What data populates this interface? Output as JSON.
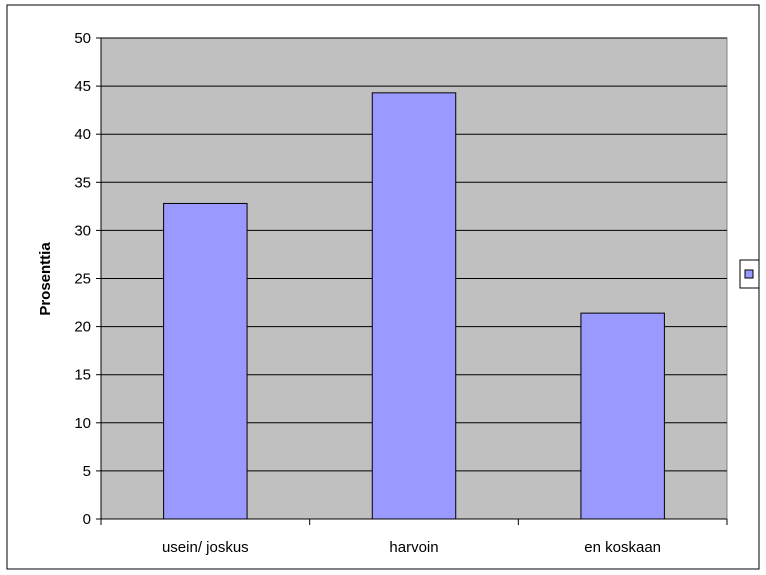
{
  "chart_data": {
    "type": "bar",
    "categories": [
      "usein/ joskus",
      "harvoin",
      "en koskaan"
    ],
    "values": [
      32.8,
      44.3,
      21.4
    ],
    "title": "",
    "xlabel": "",
    "ylabel": "Prosenttia",
    "ylim": [
      0,
      50
    ],
    "yticks": [
      0,
      5,
      10,
      15,
      20,
      25,
      30,
      35,
      40,
      45,
      50
    ],
    "grid": true,
    "legend": "right",
    "colors": {
      "bar": "#9999ff",
      "plot_background": "#c0c0c0",
      "gridline": "#000000",
      "border": "#000000"
    }
  }
}
